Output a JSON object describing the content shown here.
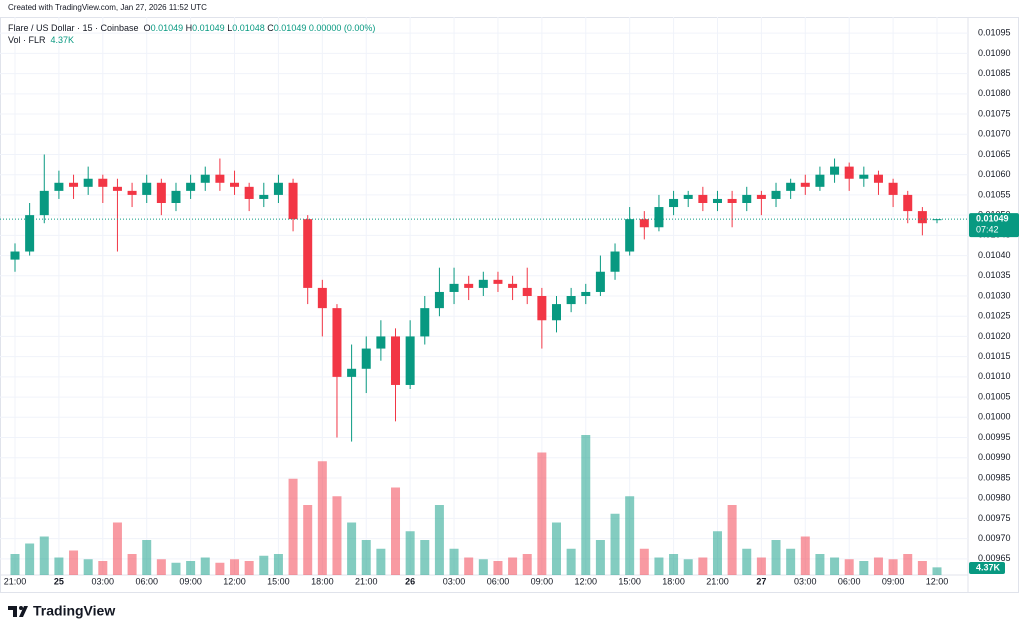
{
  "header": {
    "created": "Created with TradingView.com, Jan 27, 2026 11:52 UTC",
    "symbol": "Flare / US Dollar · 15 · Coinbase",
    "o": "O",
    "h": "H",
    "l": "L",
    "c": "C",
    "change": "0.00000 (0.00%)"
  },
  "chart_data": {
    "type": "candlestick",
    "categories": [
      "21:00",
      null,
      null,
      "25",
      null,
      null,
      "03:00",
      null,
      null,
      "06:00",
      null,
      null,
      "09:00",
      null,
      null,
      "12:00",
      null,
      null,
      "15:00",
      null,
      null,
      "18:00",
      null,
      null,
      "21:00",
      null,
      null,
      "26",
      null,
      null,
      "03:00",
      null,
      null,
      "06:00",
      null,
      null,
      "09:00",
      null,
      null,
      "12:00",
      null,
      null,
      "15:00",
      null,
      null,
      "18:00",
      null,
      null,
      "21:00",
      null,
      null,
      "27",
      null,
      null,
      "03:00",
      null,
      null,
      "06:00",
      null,
      null,
      "09:00",
      null,
      null,
      "12:00"
    ],
    "open": [
      0.01039,
      0.01041,
      0.0105,
      0.01056,
      0.01058,
      0.01057,
      0.01059,
      0.01057,
      0.01056,
      0.01055,
      0.01058,
      0.01053,
      0.01056,
      0.01058,
      0.0106,
      0.01058,
      0.01057,
      0.01054,
      0.01055,
      0.01058,
      0.01049,
      0.01032,
      0.01027,
      0.0101,
      0.01012,
      0.01017,
      0.0102,
      0.01008,
      0.0102,
      0.01027,
      0.01031,
      0.01033,
      0.01032,
      0.01034,
      0.01033,
      0.01032,
      0.0103,
      0.01024,
      0.01028,
      0.0103,
      0.01031,
      0.01036,
      0.01041,
      0.01049,
      0.01047,
      0.01052,
      0.01054,
      0.01055,
      0.01053,
      0.01054,
      0.01053,
      0.01055,
      0.01054,
      0.01056,
      0.01058,
      0.01057,
      0.0106,
      0.01062,
      0.01059,
      0.0106,
      0.01058,
      0.01055,
      0.01051,
      0.01049
    ],
    "high": [
      0.01043,
      0.01053,
      0.01065,
      0.01061,
      0.0106,
      0.01062,
      0.0106,
      0.01059,
      0.01058,
      0.0106,
      0.01059,
      0.01058,
      0.0106,
      0.01062,
      0.01064,
      0.01061,
      0.01058,
      0.01058,
      0.0106,
      0.01059,
      0.0105,
      0.01034,
      0.01028,
      0.01018,
      0.0102,
      0.01024,
      0.01022,
      0.01024,
      0.0103,
      0.01037,
      0.01037,
      0.01035,
      0.01036,
      0.01036,
      0.01035,
      0.01037,
      0.01032,
      0.0103,
      0.01032,
      0.01033,
      0.0104,
      0.01043,
      0.01052,
      0.01051,
      0.01055,
      0.01056,
      0.01056,
      0.01057,
      0.01056,
      0.01056,
      0.01057,
      0.01056,
      0.01058,
      0.01059,
      0.0106,
      0.01062,
      0.01064,
      0.01063,
      0.01062,
      0.01061,
      0.01059,
      0.01056,
      0.01052,
      0.01049
    ],
    "low": [
      0.01036,
      0.0104,
      0.01048,
      0.01054,
      0.01054,
      0.01055,
      0.01053,
      0.01041,
      0.01052,
      0.01053,
      0.0105,
      0.01051,
      0.01054,
      0.01056,
      0.01056,
      0.01055,
      0.01051,
      0.01052,
      0.01053,
      0.01046,
      0.01028,
      0.0102,
      0.00995,
      0.00994,
      0.01006,
      0.01014,
      0.00999,
      0.01007,
      0.01018,
      0.01025,
      0.01028,
      0.01029,
      0.0103,
      0.01031,
      0.01029,
      0.01028,
      0.01017,
      0.01021,
      0.01026,
      0.01028,
      0.0103,
      0.01034,
      0.0104,
      0.01044,
      0.01046,
      0.0105,
      0.01052,
      0.01051,
      0.01051,
      0.01047,
      0.01051,
      0.0105,
      0.01052,
      0.01054,
      0.01055,
      0.01056,
      0.01058,
      0.01056,
      0.01057,
      0.01055,
      0.01052,
      0.01048,
      0.01045,
      0.01048
    ],
    "close": [
      0.01041,
      0.0105,
      0.01056,
      0.01058,
      0.01057,
      0.01059,
      0.01057,
      0.01056,
      0.01055,
      0.01058,
      0.01053,
      0.01056,
      0.01058,
      0.0106,
      0.01058,
      0.01057,
      0.01054,
      0.01055,
      0.01058,
      0.01049,
      0.01032,
      0.01027,
      0.0101,
      0.01012,
      0.01017,
      0.0102,
      0.01008,
      0.0102,
      0.01027,
      0.01031,
      0.01033,
      0.01032,
      0.01034,
      0.01033,
      0.01032,
      0.0103,
      0.01024,
      0.01028,
      0.0103,
      0.01031,
      0.01036,
      0.01041,
      0.01049,
      0.01047,
      0.01052,
      0.01054,
      0.01055,
      0.01053,
      0.01054,
      0.01053,
      0.01055,
      0.01054,
      0.01056,
      0.01058,
      0.01057,
      0.0106,
      0.01062,
      0.01059,
      0.0106,
      0.01058,
      0.01055,
      0.01051,
      0.01048,
      0.01049
    ],
    "up_color": "#089981",
    "down_color": "#f23645",
    "volume": {
      "name": "Vol · FLR",
      "last_label": "4.37K",
      "values": [
        12000,
        18000,
        22000,
        10000,
        14000,
        9000,
        8000,
        30000,
        12000,
        20000,
        9000,
        7000,
        8000,
        10000,
        7000,
        9000,
        8000,
        11000,
        12000,
        55000,
        40000,
        65000,
        45000,
        30000,
        20000,
        15000,
        50000,
        25000,
        20000,
        40000,
        15000,
        10000,
        9000,
        8000,
        10000,
        12000,
        70000,
        30000,
        15000,
        80000,
        20000,
        35000,
        45000,
        15000,
        10000,
        12000,
        9000,
        10000,
        25000,
        40000,
        15000,
        10000,
        20000,
        15000,
        22000,
        12000,
        10000,
        9000,
        8000,
        10000,
        9000,
        12000,
        8000,
        4370
      ]
    },
    "ylim": [
      0.00961,
      0.01099
    ],
    "yticks": [
      {
        "value": 0.00965,
        "label": "0.00965"
      },
      {
        "value": 0.0097,
        "label": "0.00970"
      },
      {
        "value": 0.00975,
        "label": "0.00975"
      },
      {
        "value": 0.0098,
        "label": "0.00980"
      },
      {
        "value": 0.00985,
        "label": "0.00985"
      },
      {
        "value": 0.0099,
        "label": "0.00990"
      },
      {
        "value": 0.00995,
        "label": "0.00995"
      },
      {
        "value": 0.01,
        "label": "0.01000"
      },
      {
        "value": 0.01005,
        "label": "0.01005"
      },
      {
        "value": 0.0101,
        "label": "0.01010"
      },
      {
        "value": 0.01015,
        "label": "0.01015"
      },
      {
        "value": 0.0102,
        "label": "0.01020"
      },
      {
        "value": 0.01025,
        "label": "0.01025"
      },
      {
        "value": 0.0103,
        "label": "0.01030"
      },
      {
        "value": 0.01035,
        "label": "0.01035"
      },
      {
        "value": 0.0104,
        "label": "0.01040"
      },
      {
        "value": 0.01045,
        "label": "0.01045"
      },
      {
        "value": 0.0105,
        "label": "0.01050"
      },
      {
        "value": 0.01055,
        "label": "0.01055"
      },
      {
        "value": 0.0106,
        "label": "0.01060"
      },
      {
        "value": 0.01065,
        "label": "0.01065"
      },
      {
        "value": 0.0107,
        "label": "0.01070"
      },
      {
        "value": 0.01075,
        "label": "0.01075"
      },
      {
        "value": 0.0108,
        "label": "0.01080"
      },
      {
        "value": 0.01085,
        "label": "0.01085"
      },
      {
        "value": 0.0109,
        "label": "0.01090"
      },
      {
        "value": 0.01095,
        "label": "0.01095"
      }
    ],
    "grid": true,
    "countdown": "07:42"
  },
  "brand": "TradingView"
}
